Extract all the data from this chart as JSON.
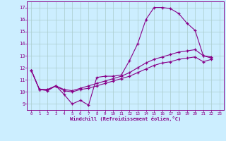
{
  "xlabel": "Windchill (Refroidissement éolien,°C)",
  "bg_color": "#cceeff",
  "grid_color": "#aacccc",
  "line_color": "#880088",
  "tick_color": "#880088",
  "xlim": [
    -0.5,
    23.5
  ],
  "ylim": [
    8.5,
    17.5
  ],
  "xticks": [
    0,
    1,
    2,
    3,
    4,
    5,
    6,
    7,
    8,
    9,
    10,
    11,
    12,
    13,
    14,
    15,
    16,
    17,
    18,
    19,
    20,
    21,
    22,
    23
  ],
  "yticks": [
    9,
    10,
    11,
    12,
    13,
    14,
    15,
    16,
    17
  ],
  "series": [
    [
      11.8,
      10.2,
      10.1,
      10.5,
      9.8,
      9.0,
      9.3,
      8.9,
      11.2,
      11.3,
      11.3,
      11.4,
      12.6,
      14.0,
      16.0,
      17.0,
      17.0,
      16.9,
      16.5,
      15.7,
      15.1,
      13.0,
      12.8
    ],
    [
      11.8,
      10.2,
      10.2,
      10.5,
      10.1,
      10.0,
      10.2,
      10.3,
      10.5,
      10.7,
      10.9,
      11.1,
      11.3,
      11.6,
      11.9,
      12.2,
      12.4,
      12.5,
      12.7,
      12.8,
      12.9,
      12.5,
      12.7
    ],
    [
      11.8,
      10.2,
      10.2,
      10.5,
      10.2,
      10.1,
      10.3,
      10.5,
      10.7,
      10.9,
      11.1,
      11.3,
      11.6,
      12.0,
      12.4,
      12.7,
      12.9,
      13.1,
      13.3,
      13.4,
      13.5,
      13.0,
      12.9
    ]
  ]
}
